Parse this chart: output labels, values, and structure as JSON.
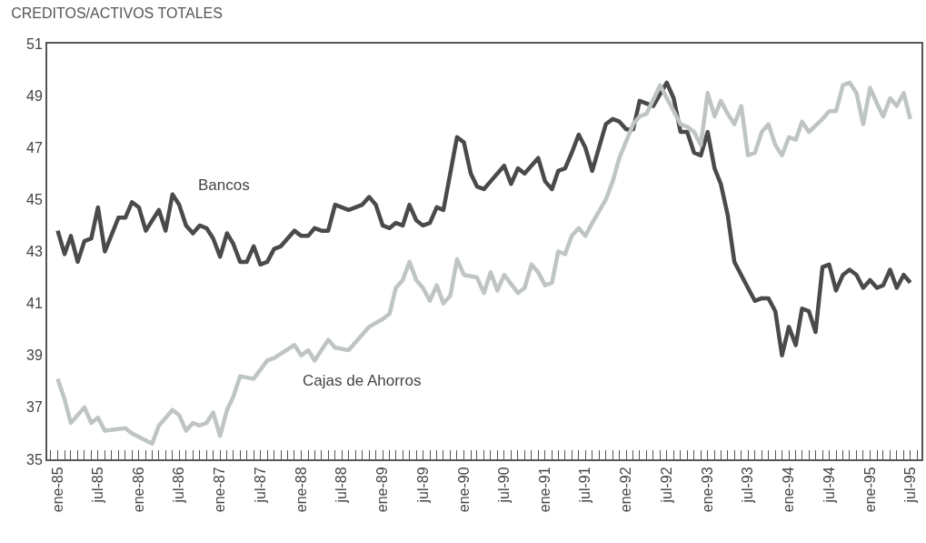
{
  "chart_data": {
    "type": "line",
    "title": "CREDITOS/ACTIVOS TOTALES",
    "series": [
      {
        "name": "Bancos",
        "color": "#4a4a4a",
        "x": [
          "1985-01",
          "1985-02",
          "1985-03",
          "1985-04",
          "1985-05",
          "1985-06",
          "1985-07",
          "1985-08",
          "1985-10",
          "1985-11",
          "1985-12",
          "1986-01",
          "1986-02",
          "1986-04",
          "1986-05",
          "1986-06",
          "1986-07",
          "1986-08",
          "1986-09",
          "1986-10",
          "1986-11",
          "1986-12",
          "1987-01",
          "1987-02",
          "1987-03",
          "1987-04",
          "1987-05",
          "1987-06",
          "1987-07",
          "1987-08",
          "1987-09",
          "1987-10",
          "1987-12",
          "1988-01",
          "1988-02",
          "1988-03",
          "1988-04",
          "1988-05",
          "1988-06",
          "1988-08",
          "1988-10",
          "1988-11",
          "1988-12",
          "1989-01",
          "1989-02",
          "1989-03",
          "1989-04",
          "1989-05",
          "1989-06",
          "1989-07",
          "1989-08",
          "1989-09",
          "1989-10",
          "1989-12",
          "1990-01",
          "1990-02",
          "1990-03",
          "1990-04",
          "1990-05",
          "1990-07",
          "1990-08",
          "1990-09",
          "1990-10",
          "1990-12",
          "1991-01",
          "1991-02",
          "1991-03",
          "1991-04",
          "1991-05",
          "1991-06",
          "1991-07",
          "1991-08",
          "1991-10",
          "1991-11",
          "1991-12",
          "1992-01",
          "1992-02",
          "1992-03",
          "1992-05",
          "1992-07",
          "1992-08",
          "1992-09",
          "1992-10",
          "1992-11",
          "1992-12",
          "1993-01",
          "1993-02",
          "1993-03",
          "1993-04",
          "1993-05",
          "1993-07",
          "1993-08",
          "1993-09",
          "1993-10",
          "1993-11",
          "1993-12",
          "1994-01",
          "1994-02",
          "1994-03",
          "1994-04",
          "1994-05",
          "1994-06",
          "1994-07",
          "1994-08",
          "1994-09",
          "1994-10",
          "1994-11",
          "1994-12",
          "1995-01",
          "1995-02",
          "1995-03",
          "1995-04",
          "1995-05",
          "1995-06",
          "1995-07"
        ],
        "values": [
          43.8,
          42.9,
          43.6,
          42.6,
          43.4,
          43.5,
          44.7,
          43.0,
          44.3,
          44.3,
          44.9,
          44.7,
          43.8,
          44.6,
          43.8,
          45.2,
          44.8,
          44.0,
          43.7,
          44.0,
          43.9,
          43.5,
          42.8,
          43.7,
          43.3,
          42.6,
          42.6,
          43.2,
          42.5,
          42.6,
          43.1,
          43.2,
          43.8,
          43.6,
          43.6,
          43.9,
          43.8,
          43.8,
          44.8,
          44.6,
          44.8,
          45.1,
          44.8,
          44.0,
          43.9,
          44.1,
          44.0,
          44.8,
          44.2,
          44.0,
          44.1,
          44.7,
          44.6,
          47.4,
          47.2,
          46.0,
          45.5,
          45.4,
          45.7,
          46.3,
          45.6,
          46.2,
          46.0,
          46.6,
          45.7,
          45.4,
          46.1,
          46.2,
          46.8,
          47.5,
          47.0,
          46.1,
          47.9,
          48.1,
          48.0,
          47.7,
          47.7,
          48.8,
          48.6,
          49.5,
          48.9,
          47.6,
          47.6,
          46.8,
          46.7,
          47.6,
          46.2,
          45.6,
          44.4,
          42.6,
          41.6,
          41.1,
          41.2,
          41.2,
          40.7,
          39.0,
          40.1,
          39.4,
          40.8,
          40.7,
          39.9,
          42.4,
          42.5,
          41.5,
          42.1,
          42.3,
          42.1,
          41.6,
          41.9,
          41.6,
          41.7,
          42.3,
          41.6,
          42.1,
          41.8
        ]
      },
      {
        "name": "Cajas de Ahorros",
        "color": "#bfc4c4",
        "x": [
          "1985-01",
          "1985-02",
          "1985-03",
          "1985-05",
          "1985-06",
          "1985-07",
          "1985-08",
          "1985-11",
          "1985-12",
          "1986-03",
          "1986-04",
          "1986-06",
          "1986-07",
          "1986-08",
          "1986-09",
          "1986-10",
          "1986-11",
          "1986-12",
          "1987-01",
          "1987-02",
          "1987-03",
          "1987-04",
          "1987-06",
          "1987-08",
          "1987-09",
          "1987-12",
          "1988-01",
          "1988-02",
          "1988-03",
          "1988-05",
          "1988-06",
          "1988-08",
          "1988-11",
          "1989-01",
          "1989-02",
          "1989-03",
          "1989-04",
          "1989-05",
          "1989-06",
          "1989-07",
          "1989-08",
          "1989-09",
          "1989-10",
          "1989-11",
          "1989-12",
          "1990-01",
          "1990-03",
          "1990-04",
          "1990-05",
          "1990-06",
          "1990-07",
          "1990-09",
          "1990-10",
          "1990-11",
          "1990-12",
          "1991-01",
          "1991-02",
          "1991-03",
          "1991-04",
          "1991-05",
          "1991-06",
          "1991-07",
          "1991-08",
          "1991-10",
          "1991-11",
          "1991-12",
          "1992-02",
          "1992-03",
          "1992-04",
          "1992-06",
          "1992-09",
          "1992-10",
          "1992-11",
          "1992-12",
          "1993-01",
          "1993-02",
          "1993-03",
          "1993-04",
          "1993-05",
          "1993-06",
          "1993-07",
          "1993-08",
          "1993-09",
          "1993-10",
          "1993-11",
          "1993-12",
          "1994-01",
          "1994-02",
          "1994-03",
          "1994-04",
          "1994-06",
          "1994-07",
          "1994-08",
          "1994-09",
          "1994-10",
          "1994-11",
          "1994-12",
          "1995-01",
          "1995-02",
          "1995-03",
          "1995-04",
          "1995-05",
          "1995-06",
          "1995-07"
        ],
        "values": [
          38.1,
          37.3,
          36.4,
          37.0,
          36.4,
          36.6,
          36.1,
          36.2,
          36.0,
          35.6,
          36.3,
          36.9,
          36.7,
          36.1,
          36.4,
          36.3,
          36.4,
          36.8,
          35.9,
          36.9,
          37.4,
          38.2,
          38.1,
          38.8,
          38.9,
          39.4,
          39.0,
          39.2,
          38.8,
          39.6,
          39.3,
          39.2,
          40.1,
          40.4,
          40.6,
          41.6,
          41.9,
          42.6,
          41.9,
          41.6,
          41.1,
          41.7,
          41.0,
          41.3,
          42.7,
          42.1,
          42.0,
          41.4,
          42.2,
          41.5,
          42.1,
          41.4,
          41.6,
          42.5,
          42.2,
          41.7,
          41.8,
          43.0,
          42.9,
          43.6,
          43.9,
          43.6,
          44.1,
          45.0,
          45.7,
          46.6,
          47.9,
          48.2,
          48.3,
          49.4,
          47.9,
          47.8,
          47.6,
          47.1,
          49.1,
          48.2,
          48.8,
          48.3,
          47.9,
          48.6,
          46.7,
          46.8,
          47.6,
          47.9,
          47.1,
          46.7,
          47.4,
          47.3,
          48.0,
          47.6,
          48.1,
          48.4,
          48.4,
          49.4,
          49.5,
          49.1,
          47.9,
          49.3,
          48.7,
          48.2,
          48.9,
          48.6,
          49.1,
          48.1
        ]
      }
    ],
    "xlim": [
      "1984-11-15",
      "1995-08-20"
    ],
    "xticks": [
      {
        "value": "1985-01",
        "label": "ene-85"
      },
      {
        "value": "1985-07",
        "label": "jul-85"
      },
      {
        "value": "1986-01",
        "label": "ene-86"
      },
      {
        "value": "1986-07",
        "label": "jul-86"
      },
      {
        "value": "1987-01",
        "label": "ene-87"
      },
      {
        "value": "1987-07",
        "label": "jul-87"
      },
      {
        "value": "1988-01",
        "label": "ene-88"
      },
      {
        "value": "1988-07",
        "label": "jul-88"
      },
      {
        "value": "1989-01",
        "label": "ene-89"
      },
      {
        "value": "1989-07",
        "label": "jul-89"
      },
      {
        "value": "1990-01",
        "label": "ene-90"
      },
      {
        "value": "1990-07",
        "label": "jul-90"
      },
      {
        "value": "1991-01",
        "label": "ene-91"
      },
      {
        "value": "1991-07",
        "label": "jul-91"
      },
      {
        "value": "1992-01",
        "label": "ene-92"
      },
      {
        "value": "1992-07",
        "label": "jul-92"
      },
      {
        "value": "1993-01",
        "label": "ene-93"
      },
      {
        "value": "1993-07",
        "label": "jul-93"
      },
      {
        "value": "1994-01",
        "label": "ene-94"
      },
      {
        "value": "1994-07",
        "label": "jul-94"
      },
      {
        "value": "1995-01",
        "label": "ene-95"
      },
      {
        "value": "1995-07",
        "label": "jul-95"
      }
    ],
    "ylim": [
      35,
      51
    ],
    "yticks": [
      35,
      37,
      39,
      41,
      43,
      45,
      47,
      49,
      51
    ],
    "legend": false,
    "marker": "none",
    "line_style": "solid"
  }
}
